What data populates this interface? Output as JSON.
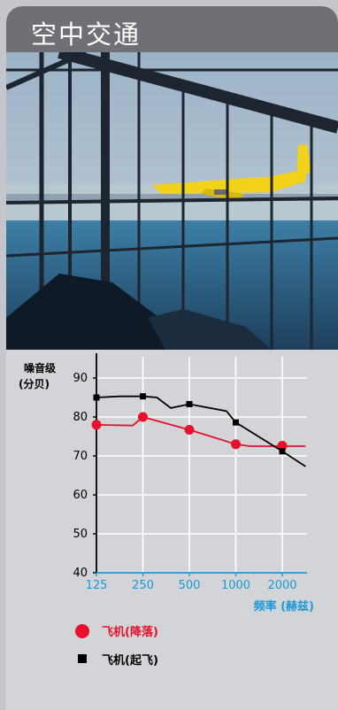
{
  "header": {
    "title": "空中交通"
  },
  "chart_data": {
    "type": "line",
    "ylabel": "噪音级\n(分贝)",
    "xlabel": "频率 (赫兹)",
    "x_ticks": [
      "125",
      "250",
      "500",
      "1000",
      "2000"
    ],
    "y_ticks": [
      90,
      80,
      70,
      60,
      50,
      40
    ],
    "ylim": [
      40,
      95
    ],
    "grid": true,
    "legend_position": "bottom",
    "series": [
      {
        "name": "飞机(降落)",
        "color": "#e8102a",
        "marker": "circle",
        "line": [
          [
            0,
            78
          ],
          [
            0.78,
            77.8
          ],
          [
            1,
            80
          ],
          [
            2,
            76.7
          ],
          [
            3,
            73
          ],
          [
            3.3,
            72.5
          ],
          [
            4,
            72.5
          ],
          [
            4.5,
            72.5
          ]
        ],
        "markers": [
          [
            0,
            78
          ],
          [
            1,
            80
          ],
          [
            2,
            76.7
          ],
          [
            3,
            73
          ],
          [
            4,
            72.6
          ]
        ]
      },
      {
        "name": "飞机(起飞)",
        "color": "#000000",
        "marker": "square",
        "line": [
          [
            0,
            85
          ],
          [
            0.5,
            85.3
          ],
          [
            1,
            85.3
          ],
          [
            1.3,
            85
          ],
          [
            1.6,
            82.3
          ],
          [
            2,
            83.3
          ],
          [
            2.8,
            81.5
          ],
          [
            3,
            78.6
          ],
          [
            4,
            71.2
          ],
          [
            4.5,
            67.3
          ]
        ],
        "markers": [
          [
            0,
            85
          ],
          [
            1,
            85.3
          ],
          [
            2,
            83.3
          ],
          [
            3,
            78.6
          ],
          [
            4,
            71.2
          ]
        ]
      }
    ]
  }
}
